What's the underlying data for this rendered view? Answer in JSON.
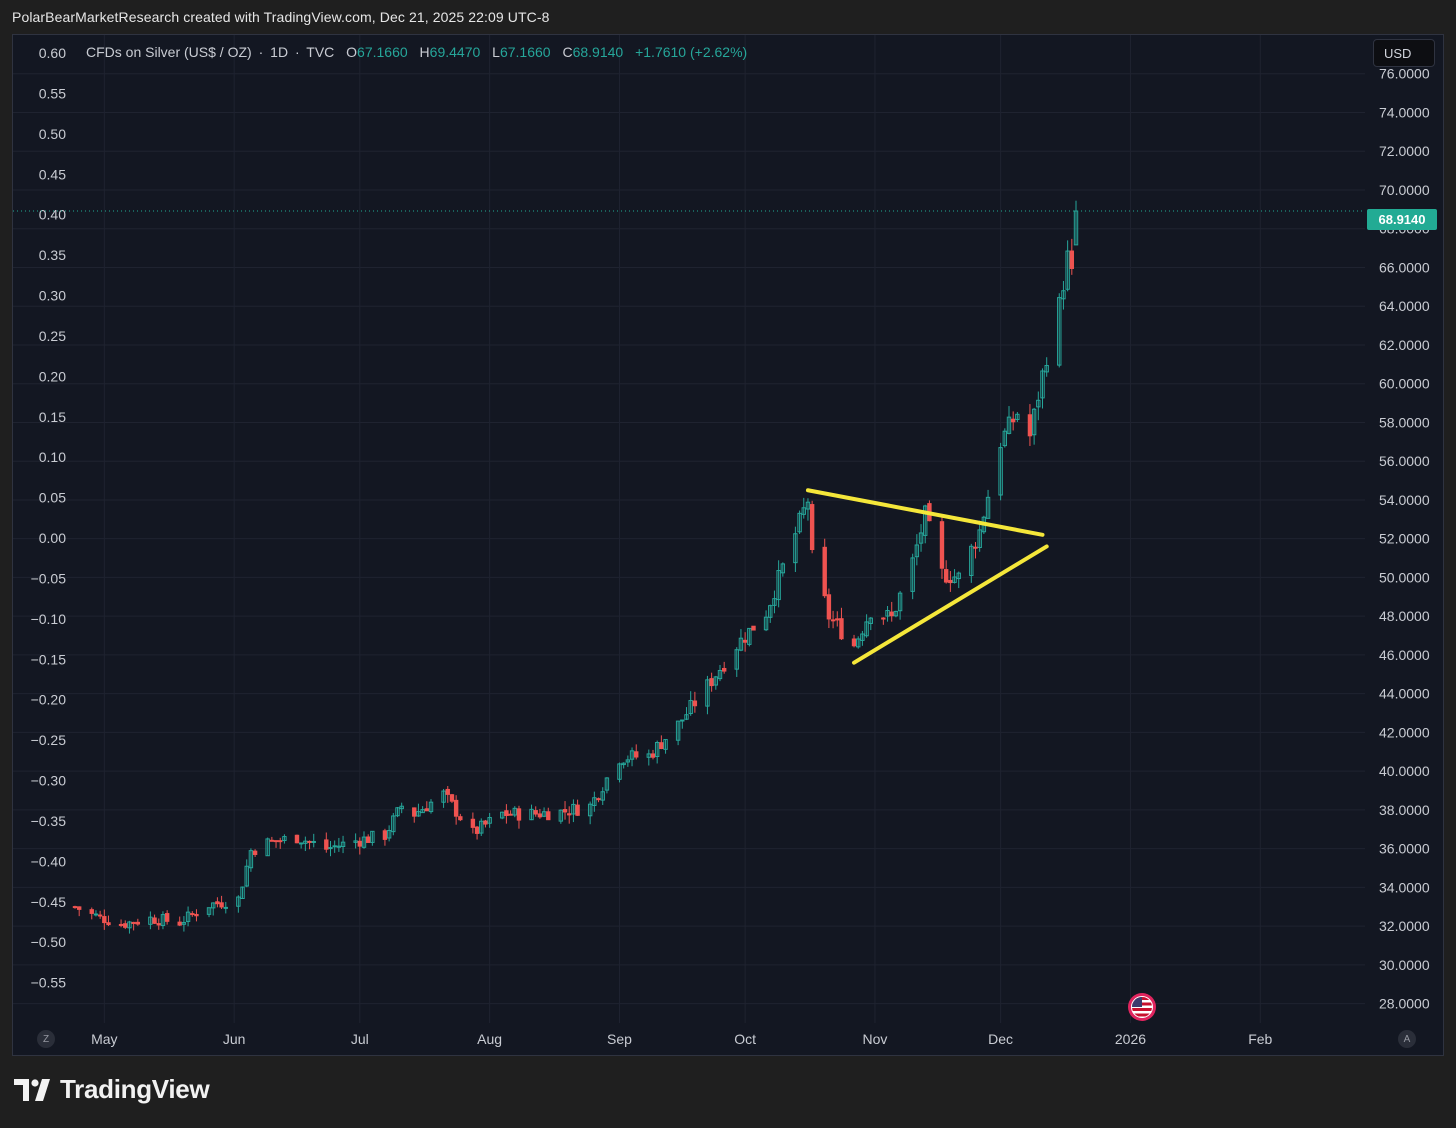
{
  "header": {
    "credit": "PolarBearMarketResearch created with TradingView.com, Dec 21, 2025 22:09 UTC-8"
  },
  "legend": {
    "symbol": "CFDs on Silver (US$ / OZ)",
    "sep": "·",
    "interval": "1D",
    "source": "TVC",
    "open_key": "O",
    "open": "67.1660",
    "high_key": "H",
    "high": "69.4470",
    "low_key": "L",
    "low": "67.1660",
    "close_key": "C",
    "close": "68.9140",
    "change": "+1.7610 (+2.62%)"
  },
  "currency_button": "USD",
  "last_price": "68.9140",
  "corner_left": "Z",
  "corner_right": "A",
  "logo_text": "TradingView",
  "colors": {
    "background": "#131722",
    "up": "#26a69a",
    "down": "#ef5350",
    "trendline": "#f5e73a",
    "price_tag": "#22ab94"
  },
  "icons": [
    "flag-icon",
    "tradingview-logo-icon"
  ],
  "chart_data": {
    "type": "candlestick",
    "title": "CFDs on Silver (US$ / OZ) · 1D · TVC",
    "xlabel": "",
    "ylabel": "",
    "x_range": [
      "2025-04-24",
      "2026-02-26"
    ],
    "x_ticks": [
      "May",
      "Jun",
      "Jul",
      "Aug",
      "Sep",
      "Oct",
      "Nov",
      "Dec",
      "2026",
      "Feb"
    ],
    "right_axis": {
      "ylim": [
        27,
        78
      ],
      "ticks": [
        "76.0000",
        "74.0000",
        "72.0000",
        "70.0000",
        "68.0000",
        "66.0000",
        "64.0000",
        "62.0000",
        "60.0000",
        "58.0000",
        "56.0000",
        "54.0000",
        "52.0000",
        "50.0000",
        "48.0000",
        "46.0000",
        "44.0000",
        "42.0000",
        "40.0000",
        "38.0000",
        "36.0000",
        "34.0000",
        "32.0000",
        "30.0000",
        "28.0000"
      ]
    },
    "left_axis": {
      "ticks": [
        "0.60",
        "0.55",
        "0.50",
        "0.45",
        "0.40",
        "0.35",
        "0.30",
        "0.25",
        "0.20",
        "0.15",
        "0.10",
        "0.05",
        "0.00",
        "−0.05",
        "−0.10",
        "−0.15",
        "−0.20",
        "−0.25",
        "−0.30",
        "−0.35",
        "−0.40",
        "−0.45",
        "−0.50",
        "−0.55"
      ]
    },
    "grid": true,
    "last_close": 68.914,
    "closes": [
      [
        "2025-04-24",
        33.0
      ],
      [
        "2025-04-28",
        32.6
      ],
      [
        "2025-05-05",
        32.1
      ],
      [
        "2025-05-12",
        32.4
      ],
      [
        "2025-05-19",
        32.2
      ],
      [
        "2025-05-26",
        33.1
      ],
      [
        "2025-06-02",
        33.4
      ],
      [
        "2025-06-05",
        35.9
      ],
      [
        "2025-06-09",
        36.3
      ],
      [
        "2025-06-16",
        36.6
      ],
      [
        "2025-06-23",
        36.0
      ],
      [
        "2025-06-30",
        36.4
      ],
      [
        "2025-07-07",
        36.7
      ],
      [
        "2025-07-11",
        38.2
      ],
      [
        "2025-07-14",
        37.8
      ],
      [
        "2025-07-21",
        38.8
      ],
      [
        "2025-07-28",
        36.8
      ],
      [
        "2025-08-04",
        37.8
      ],
      [
        "2025-08-11",
        37.8
      ],
      [
        "2025-08-18",
        37.9
      ],
      [
        "2025-08-25",
        38.2
      ],
      [
        "2025-09-01",
        40.7
      ],
      [
        "2025-09-08",
        40.8
      ],
      [
        "2025-09-15",
        42.4
      ],
      [
        "2025-09-22",
        44.4
      ],
      [
        "2025-09-29",
        46.5
      ],
      [
        "2025-10-06",
        48.2
      ],
      [
        "2025-10-10",
        50.5
      ],
      [
        "2025-10-16",
        54.0
      ],
      [
        "2025-10-17",
        51.0
      ],
      [
        "2025-10-21",
        48.0
      ],
      [
        "2025-10-27",
        46.5
      ],
      [
        "2025-10-31",
        48.3
      ],
      [
        "2025-11-05",
        47.9
      ],
      [
        "2025-11-10",
        50.8
      ],
      [
        "2025-11-13",
        53.2
      ],
      [
        "2025-11-17",
        50.2
      ],
      [
        "2025-11-21",
        50.0
      ],
      [
        "2025-11-26",
        52.4
      ],
      [
        "2025-12-01",
        57.0
      ],
      [
        "2025-12-05",
        58.5
      ],
      [
        "2025-12-08",
        57.3
      ],
      [
        "2025-12-12",
        61.5
      ],
      [
        "2025-12-15",
        64.0
      ],
      [
        "2025-12-17",
        66.5
      ],
      [
        "2025-12-18",
        65.5
      ],
      [
        "2025-12-19",
        67.2
      ],
      [
        "2025-12-21",
        68.9
      ]
    ],
    "annotations": [
      {
        "type": "trendline",
        "from": [
          "2025-10-16",
          54.5
        ],
        "to": [
          "2025-12-11",
          52.2
        ]
      },
      {
        "type": "trendline",
        "from": [
          "2025-10-27",
          45.6
        ],
        "to": [
          "2025-12-12",
          51.6
        ]
      }
    ]
  }
}
